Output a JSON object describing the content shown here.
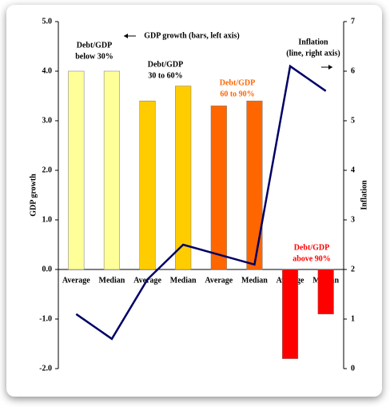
{
  "chart_data": {
    "type": "bar_line",
    "categories": [
      "Average",
      "Median",
      "Average",
      "Median",
      "Average",
      "Median",
      "Average",
      "Median"
    ],
    "series": [
      {
        "type": "bar",
        "values": [
          4.0,
          4.0,
          3.4,
          3.7,
          3.3,
          3.4,
          -1.8,
          -0.9
        ],
        "colors": [
          "#ffff99",
          "#ffff99",
          "#ffcc00",
          "#ffcc00",
          "#ff6600",
          "#ff6600",
          "#ff0000",
          "#ff0000"
        ]
      },
      {
        "type": "line",
        "axis": "y2",
        "color": "#000066",
        "values": [
          1.1,
          0.6,
          1.8,
          2.5,
          2.3,
          2.1,
          6.1,
          5.6
        ]
      }
    ],
    "ylabel": "GDP growth",
    "y2label": "Inflation",
    "ylim": [
      -2,
      5
    ],
    "yticks": [
      {
        "value": -2,
        "label": "-2.0"
      },
      {
        "value": -1,
        "label": "-1.0"
      },
      {
        "value": 0,
        "label": "0.0"
      },
      {
        "value": 1,
        "label": "1.0"
      },
      {
        "value": 2,
        "label": "2.0"
      },
      {
        "value": 3,
        "label": "3.0"
      },
      {
        "value": 4,
        "label": "4.0"
      },
      {
        "value": 5,
        "label": "5.0"
      }
    ],
    "y2lim": [
      0,
      7
    ],
    "y2ticks": [
      0,
      1,
      2,
      3,
      4,
      5,
      6,
      7
    ],
    "annotations": [
      {
        "lines": [
          "GDP growth (bars, left axis)"
        ],
        "color": "#000000"
      },
      {
        "lines": [
          "Debt/GDP",
          "below 30%"
        ],
        "color": "#000000"
      },
      {
        "lines": [
          "Debt/GDP",
          "30 to 60%"
        ],
        "color": "#000000"
      },
      {
        "lines": [
          "Debt/GDP",
          "60 to 90%"
        ],
        "color": "#ff6600"
      },
      {
        "lines": [
          "Debt/GDP",
          "above 90%"
        ],
        "color": "#ff0000"
      },
      {
        "lines": [
          "Inflation",
          "(line, right axis)"
        ],
        "color": "#000000"
      }
    ]
  }
}
